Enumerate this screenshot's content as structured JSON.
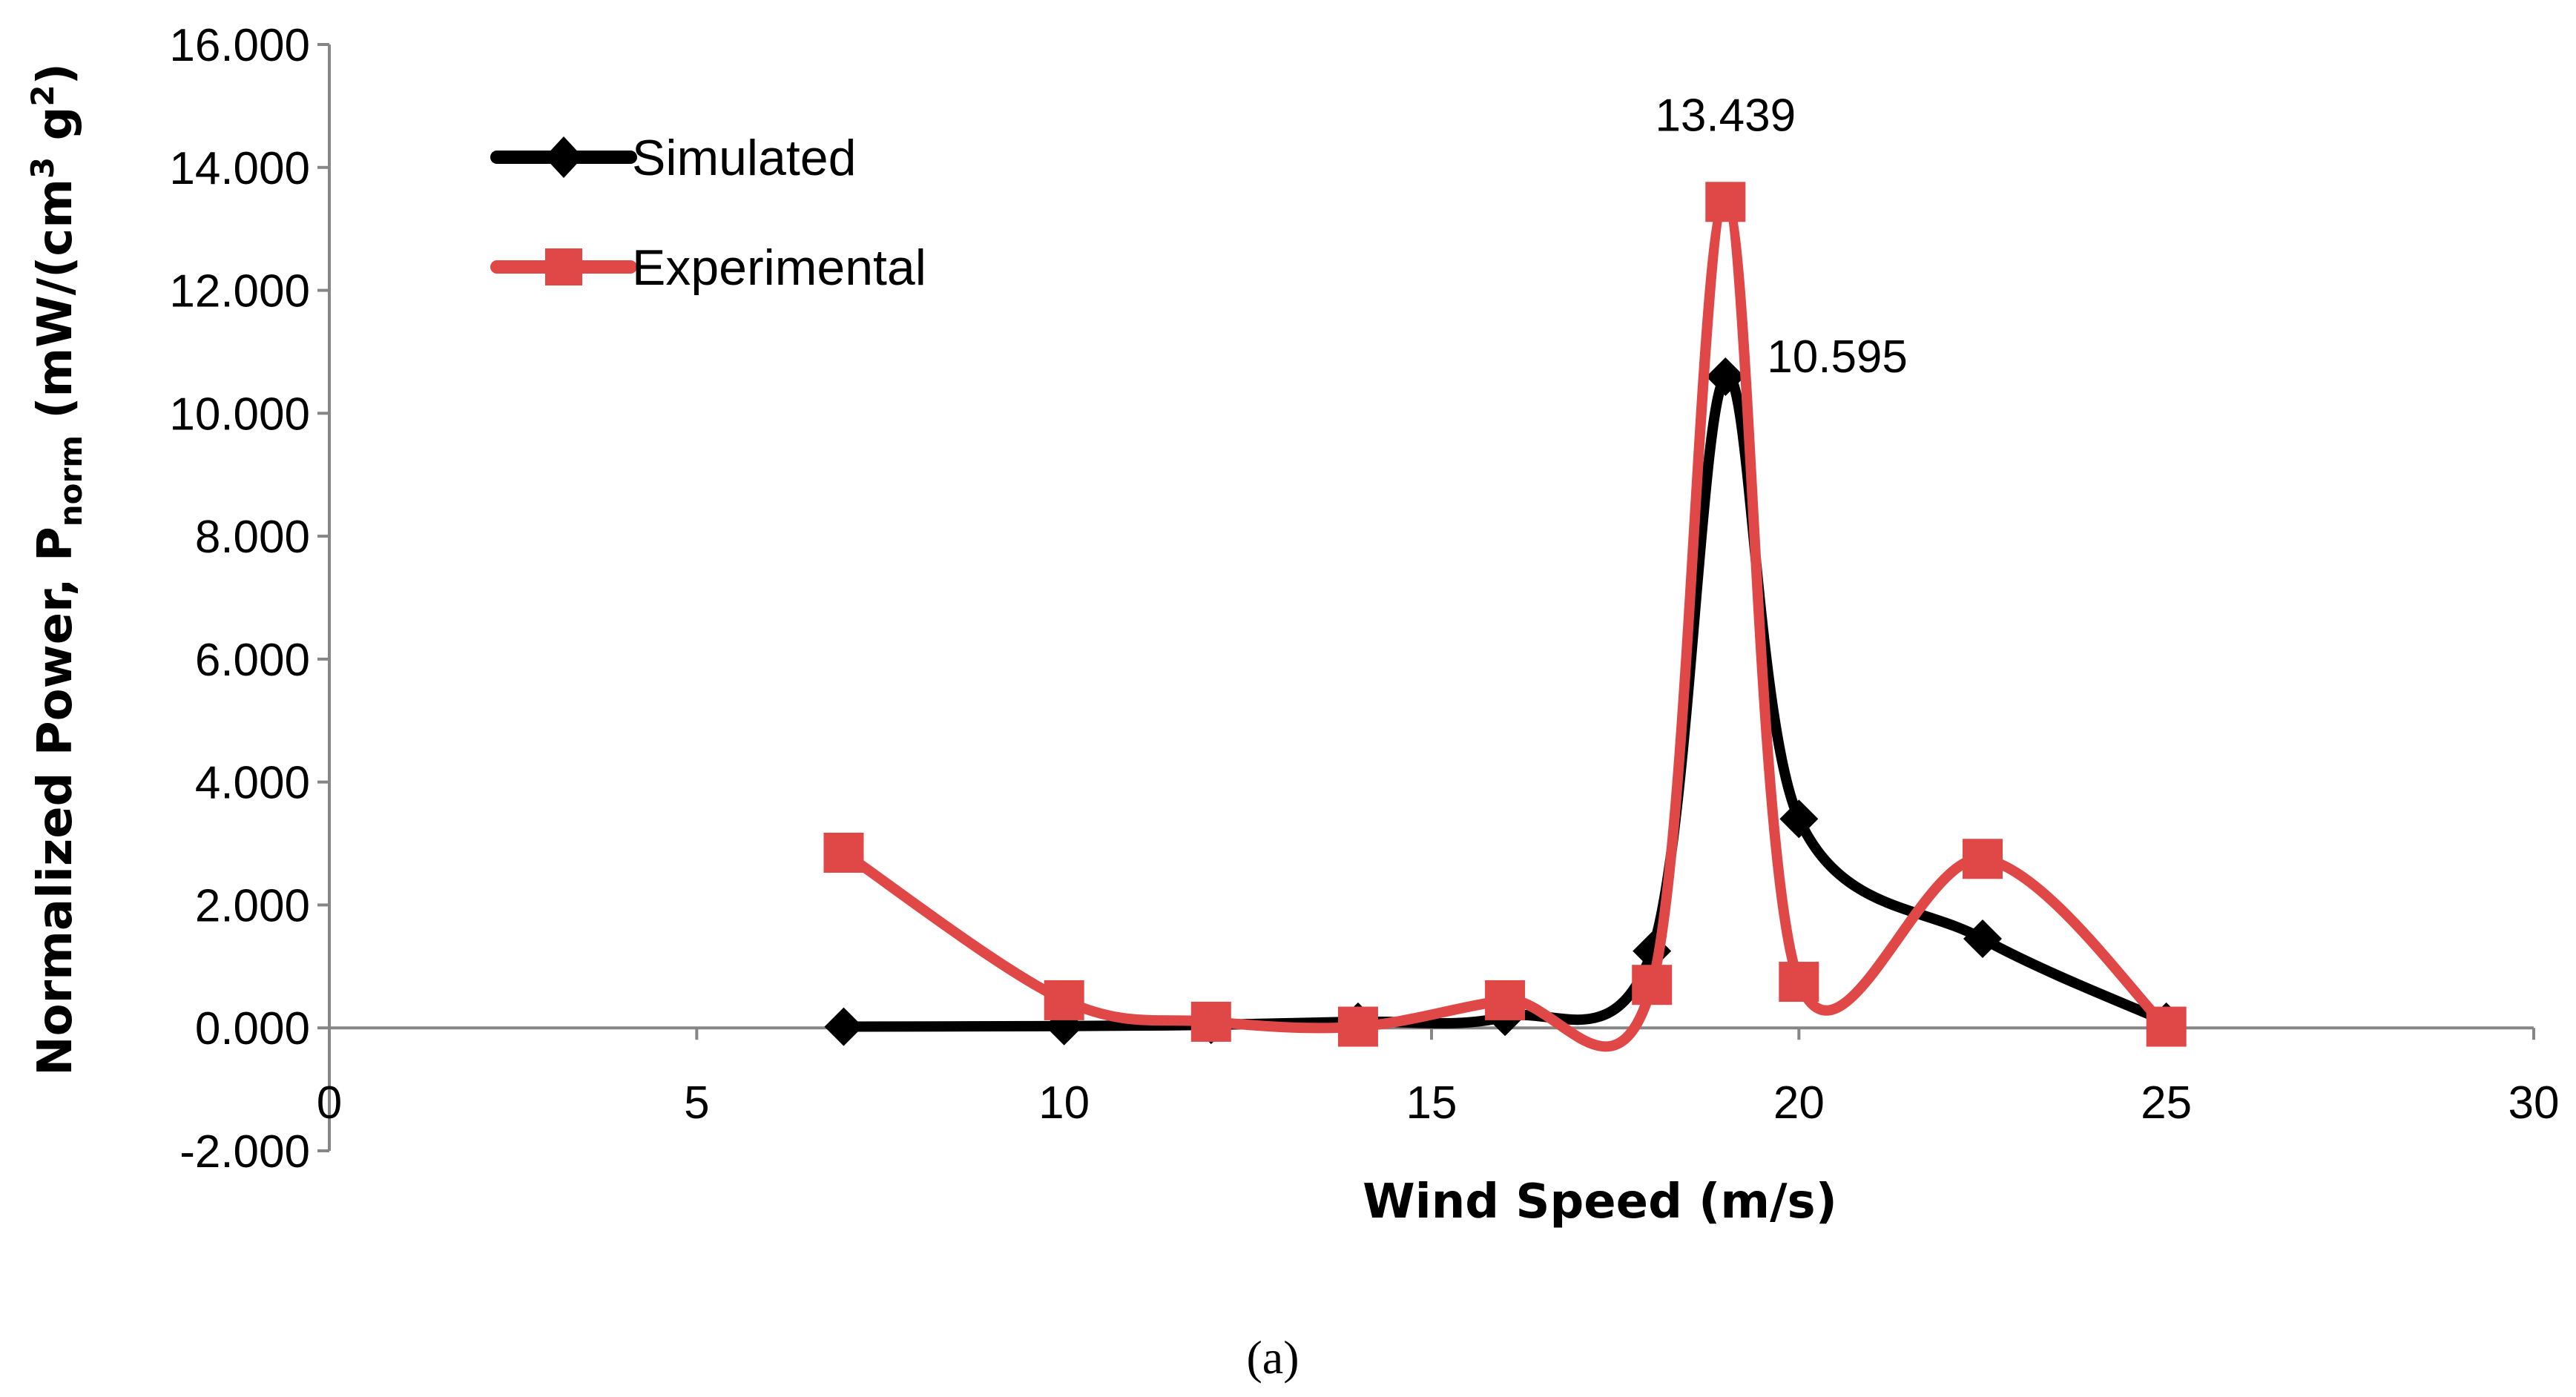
{
  "chart_data": {
    "type": "line",
    "title": "",
    "xlabel": "Wind Speed (m/s)",
    "ylabel_main": "Normalized Power, P",
    "ylabel_subscript": "norm",
    "ylabel_unit_start": " (mW/(cm",
    "ylabel_unit_sup1": "3",
    "ylabel_unit_mid": " g",
    "ylabel_unit_sup2": "2",
    "ylabel_unit_end": ")",
    "xlim": [
      0,
      30
    ],
    "ylim": [
      -2,
      16
    ],
    "xticks": [
      0,
      5,
      10,
      15,
      20,
      25,
      30
    ],
    "yticks": [
      -2,
      0,
      2,
      4,
      6,
      8,
      10,
      12,
      14,
      16
    ],
    "xtick_labels": [
      "0",
      "5",
      "10",
      "15",
      "20",
      "25",
      "30"
    ],
    "ytick_labels": [
      "-2.000",
      "0.000",
      "2.000",
      "4.000",
      "6.000",
      "8.000",
      "10.000",
      "12.000",
      "14.000",
      "16.000"
    ],
    "grid": false,
    "legend_position": "top-left",
    "series": [
      {
        "name": "Simulated",
        "marker": "diamond",
        "color": "#000000",
        "x": [
          7,
          10,
          12,
          14,
          16,
          18,
          19,
          20,
          22.5,
          25
        ],
        "y": [
          0.02,
          0.03,
          0.05,
          0.1,
          0.18,
          1.25,
          10.595,
          3.4,
          1.45,
          0.1
        ]
      },
      {
        "name": "Experimental",
        "marker": "square",
        "color": "#e04848",
        "x": [
          7,
          10,
          12,
          14,
          16,
          18,
          19,
          20,
          22.5,
          25
        ],
        "y": [
          2.85,
          0.45,
          0.1,
          0.02,
          0.45,
          0.7,
          13.439,
          0.75,
          2.75,
          0.02
        ]
      }
    ],
    "annotations": [
      {
        "text": "13.439",
        "series": "Experimental",
        "x": 19,
        "y": 13.439,
        "placement": "above"
      },
      {
        "text": "10.595",
        "series": "Simulated",
        "x": 19,
        "y": 10.595,
        "placement": "right"
      }
    ],
    "caption": "(a)"
  }
}
